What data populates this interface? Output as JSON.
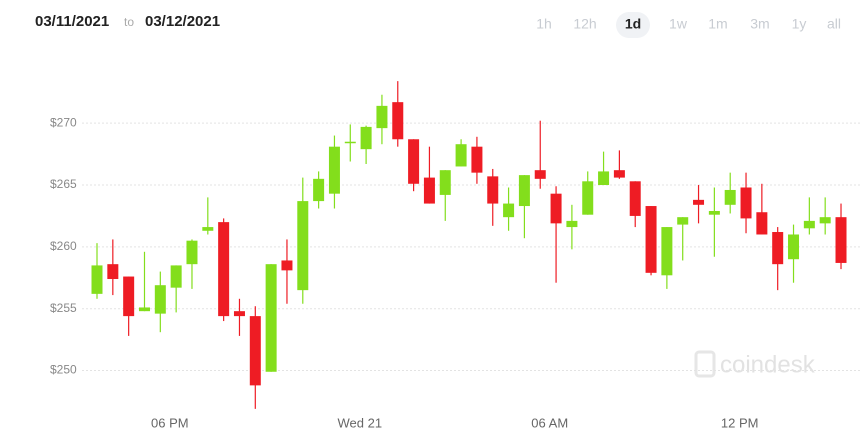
{
  "header": {
    "date_from": "03/11/2021",
    "separator": "to",
    "date_to": "03/12/2021",
    "ranges": [
      "1h",
      "12h",
      "1d",
      "1w",
      "1m",
      "3m",
      "1y",
      "all"
    ],
    "selected_range": 2
  },
  "watermark": "coindesk",
  "chart_data": {
    "type": "candlestick",
    "categories": [
      null,
      null,
      null,
      null,
      null,
      null,
      null,
      null,
      null,
      null,
      null,
      null,
      null,
      null,
      null,
      null,
      null,
      null,
      null,
      null,
      null,
      null,
      null,
      null,
      null,
      null,
      null,
      null,
      null,
      null,
      null,
      null,
      null,
      null,
      null,
      null,
      null,
      null,
      null,
      null,
      null,
      null,
      null,
      null,
      null,
      null,
      null,
      null
    ],
    "open": [
      256.2,
      258.6,
      257.6,
      254.8,
      254.6,
      256.7,
      258.6,
      261.3,
      262,
      254.8,
      254.4,
      249.9,
      258.9,
      256.5,
      263.7,
      264.3,
      268.4,
      267.9,
      269.6,
      271.7,
      268.7,
      265.6,
      264.2,
      266.5,
      268.1,
      265.7,
      262.4,
      263.3,
      266.2,
      264.3,
      261.6,
      262.6,
      265,
      266.2,
      265.3,
      263.3,
      257.7,
      261.8,
      263.8,
      262.6,
      263.4,
      264.8,
      262.8,
      261.2,
      259,
      261.5,
      261.9,
      262.4
    ],
    "high": [
      260.3,
      260.6,
      257.6,
      259.6,
      258,
      258.5,
      260.6,
      264,
      262.3,
      255.8,
      255.2,
      258.6,
      260.6,
      265.6,
      266.1,
      269,
      269.9,
      269.8,
      272.3,
      273.4,
      268.7,
      268.1,
      266.2,
      268.7,
      268.9,
      266.3,
      264.8,
      265.8,
      270.2,
      264.9,
      263.4,
      266.1,
      267.7,
      267.8,
      265.3,
      263.3,
      261.6,
      262.4,
      265,
      264.8,
      266,
      266,
      265.1,
      261.6,
      261.8,
      264,
      264,
      263.5
    ],
    "low": [
      255.8,
      256.1,
      252.8,
      254.8,
      253.1,
      254.7,
      256.6,
      261,
      254,
      252.8,
      246.9,
      249.9,
      255.4,
      255.4,
      263.1,
      263.1,
      266.9,
      266.7,
      268.3,
      268.1,
      264.5,
      263.5,
      262.1,
      266.5,
      265.1,
      261.7,
      261.3,
      260.7,
      264.7,
      257.1,
      259.8,
      262.6,
      265,
      265.5,
      261.6,
      257.7,
      256.6,
      258.9,
      261.9,
      259.2,
      262.7,
      261.1,
      261,
      256.5,
      257.1,
      261,
      261,
      258.2
    ],
    "close": [
      258.5,
      257.4,
      254.4,
      255.1,
      256.9,
      258.5,
      260.5,
      261.6,
      254.4,
      254.4,
      248.8,
      258.6,
      258.1,
      263.7,
      265.5,
      268.1,
      268.5,
      269.7,
      271.4,
      268.7,
      265.1,
      263.5,
      266.2,
      268.3,
      266,
      263.5,
      263.5,
      265.8,
      265.5,
      261.9,
      262.1,
      265.3,
      266.1,
      265.6,
      262.5,
      257.9,
      261.6,
      262.4,
      263.4,
      262.9,
      264.6,
      262.3,
      261,
      258.6,
      261,
      262.1,
      262.4,
      258.7
    ],
    "up_color": "#83de1c",
    "down_color": "#ee1c24",
    "ylim": [
      246,
      274.3
    ],
    "yticks": [
      {
        "value": 250,
        "label": "$250"
      },
      {
        "value": 255,
        "label": "$255"
      },
      {
        "value": 260,
        "label": "$260"
      },
      {
        "value": 265,
        "label": "$265"
      },
      {
        "value": 270,
        "label": "$270"
      }
    ],
    "xticks": [
      {
        "value": 4.6,
        "label": "06 PM"
      },
      {
        "value": 16.6,
        "label": "Wed 21"
      },
      {
        "value": 28.6,
        "label": "06 AM"
      },
      {
        "value": 40.6,
        "label": "12 PM"
      }
    ],
    "grid": true
  }
}
